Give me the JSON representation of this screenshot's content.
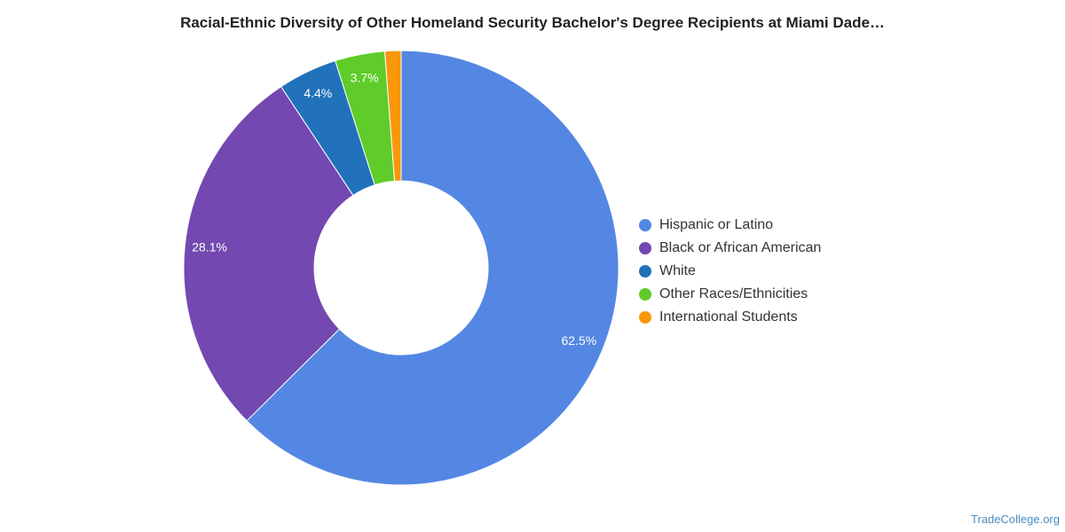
{
  "chart_data": {
    "type": "pie",
    "title": "Racial-Ethnic Diversity of Other Homeland Security Bachelor's Degree Recipients at Miami Dade…",
    "donut": true,
    "legend_position": "right",
    "categories": [
      "Hispanic or Latino",
      "Black or African American",
      "White",
      "Other Races/Ethnicities",
      "International Students"
    ],
    "values": [
      62.5,
      28.1,
      4.4,
      3.7,
      1.2
    ],
    "data_labels": [
      "62.5%",
      "28.1%",
      "4.4%",
      "3.7%",
      ""
    ],
    "colors": [
      "#5487e3",
      "#7348b0",
      "#2172bb",
      "#5fcc2a",
      "#fa970a"
    ]
  },
  "source": "TradeCollege.org"
}
